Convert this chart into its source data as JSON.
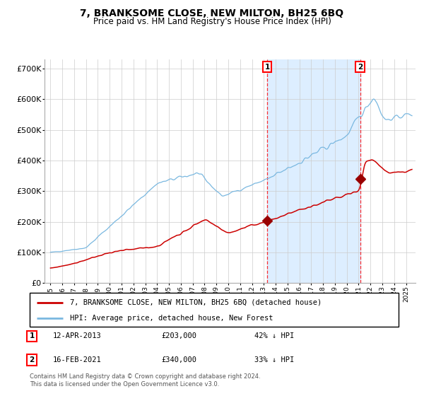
{
  "title": "7, BRANKSOME CLOSE, NEW MILTON, BH25 6BQ",
  "subtitle": "Price paid vs. HM Land Registry's House Price Index (HPI)",
  "ylabel_ticks": [
    "£0",
    "£100K",
    "£200K",
    "£300K",
    "£400K",
    "£500K",
    "£600K",
    "£700K"
  ],
  "ytick_values": [
    0,
    100000,
    200000,
    300000,
    400000,
    500000,
    600000,
    700000
  ],
  "ylim": [
    0,
    730000
  ],
  "xlim_start": 1994.5,
  "xlim_end": 2025.8,
  "sale1_date": 2013.28,
  "sale1_price": 203000,
  "sale1_label": "1",
  "sale2_date": 2021.12,
  "sale2_price": 340000,
  "sale2_label": "2",
  "hpi_color": "#7ab8e0",
  "price_color": "#cc0000",
  "marker_color": "#990000",
  "shading_color": "#ddeeff",
  "background_color": "#ffffff",
  "grid_color": "#cccccc",
  "legend_house": "7, BRANKSOME CLOSE, NEW MILTON, BH25 6BQ (detached house)",
  "legend_hpi": "HPI: Average price, detached house, New Forest",
  "footnote": "Contains HM Land Registry data © Crown copyright and database right 2024.\nThis data is licensed under the Open Government Licence v3.0.",
  "title_fontsize": 10,
  "subtitle_fontsize": 8.5
}
